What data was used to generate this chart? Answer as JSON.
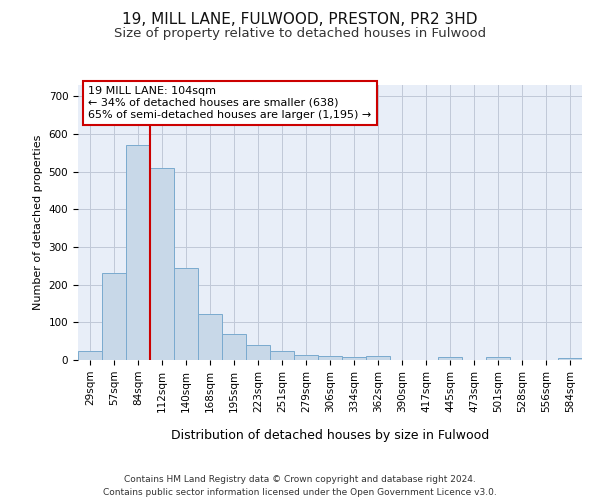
{
  "title1": "19, MILL LANE, FULWOOD, PRESTON, PR2 3HD",
  "title2": "Size of property relative to detached houses in Fulwood",
  "xlabel": "Distribution of detached houses by size in Fulwood",
  "ylabel": "Number of detached properties",
  "categories": [
    "29sqm",
    "57sqm",
    "84sqm",
    "112sqm",
    "140sqm",
    "168sqm",
    "195sqm",
    "223sqm",
    "251sqm",
    "279sqm",
    "306sqm",
    "334sqm",
    "362sqm",
    "390sqm",
    "417sqm",
    "445sqm",
    "473sqm",
    "501sqm",
    "528sqm",
    "556sqm",
    "584sqm"
  ],
  "values": [
    25,
    230,
    570,
    510,
    243,
    123,
    68,
    40,
    25,
    13,
    10,
    9,
    10,
    0,
    0,
    8,
    0,
    8,
    0,
    0,
    5
  ],
  "bar_color": "#c8d8e8",
  "bar_edge_color": "#7aaacf",
  "red_line_x": 2.5,
  "annotation_text": "19 MILL LANE: 104sqm\n← 34% of detached houses are smaller (638)\n65% of semi-detached houses are larger (1,195) →",
  "annotation_box_color": "white",
  "annotation_box_edge_color": "#cc0000",
  "red_line_color": "#cc0000",
  "grid_color": "#c0c8d8",
  "bg_color": "#e8eef8",
  "ylim": [
    0,
    730
  ],
  "yticks": [
    0,
    100,
    200,
    300,
    400,
    500,
    600,
    700
  ],
  "footnote1": "Contains HM Land Registry data © Crown copyright and database right 2024.",
  "footnote2": "Contains public sector information licensed under the Open Government Licence v3.0.",
  "title1_fontsize": 11,
  "title2_fontsize": 9.5,
  "xlabel_fontsize": 9,
  "ylabel_fontsize": 8,
  "tick_fontsize": 7.5,
  "annot_fontsize": 8,
  "footnote_fontsize": 6.5
}
